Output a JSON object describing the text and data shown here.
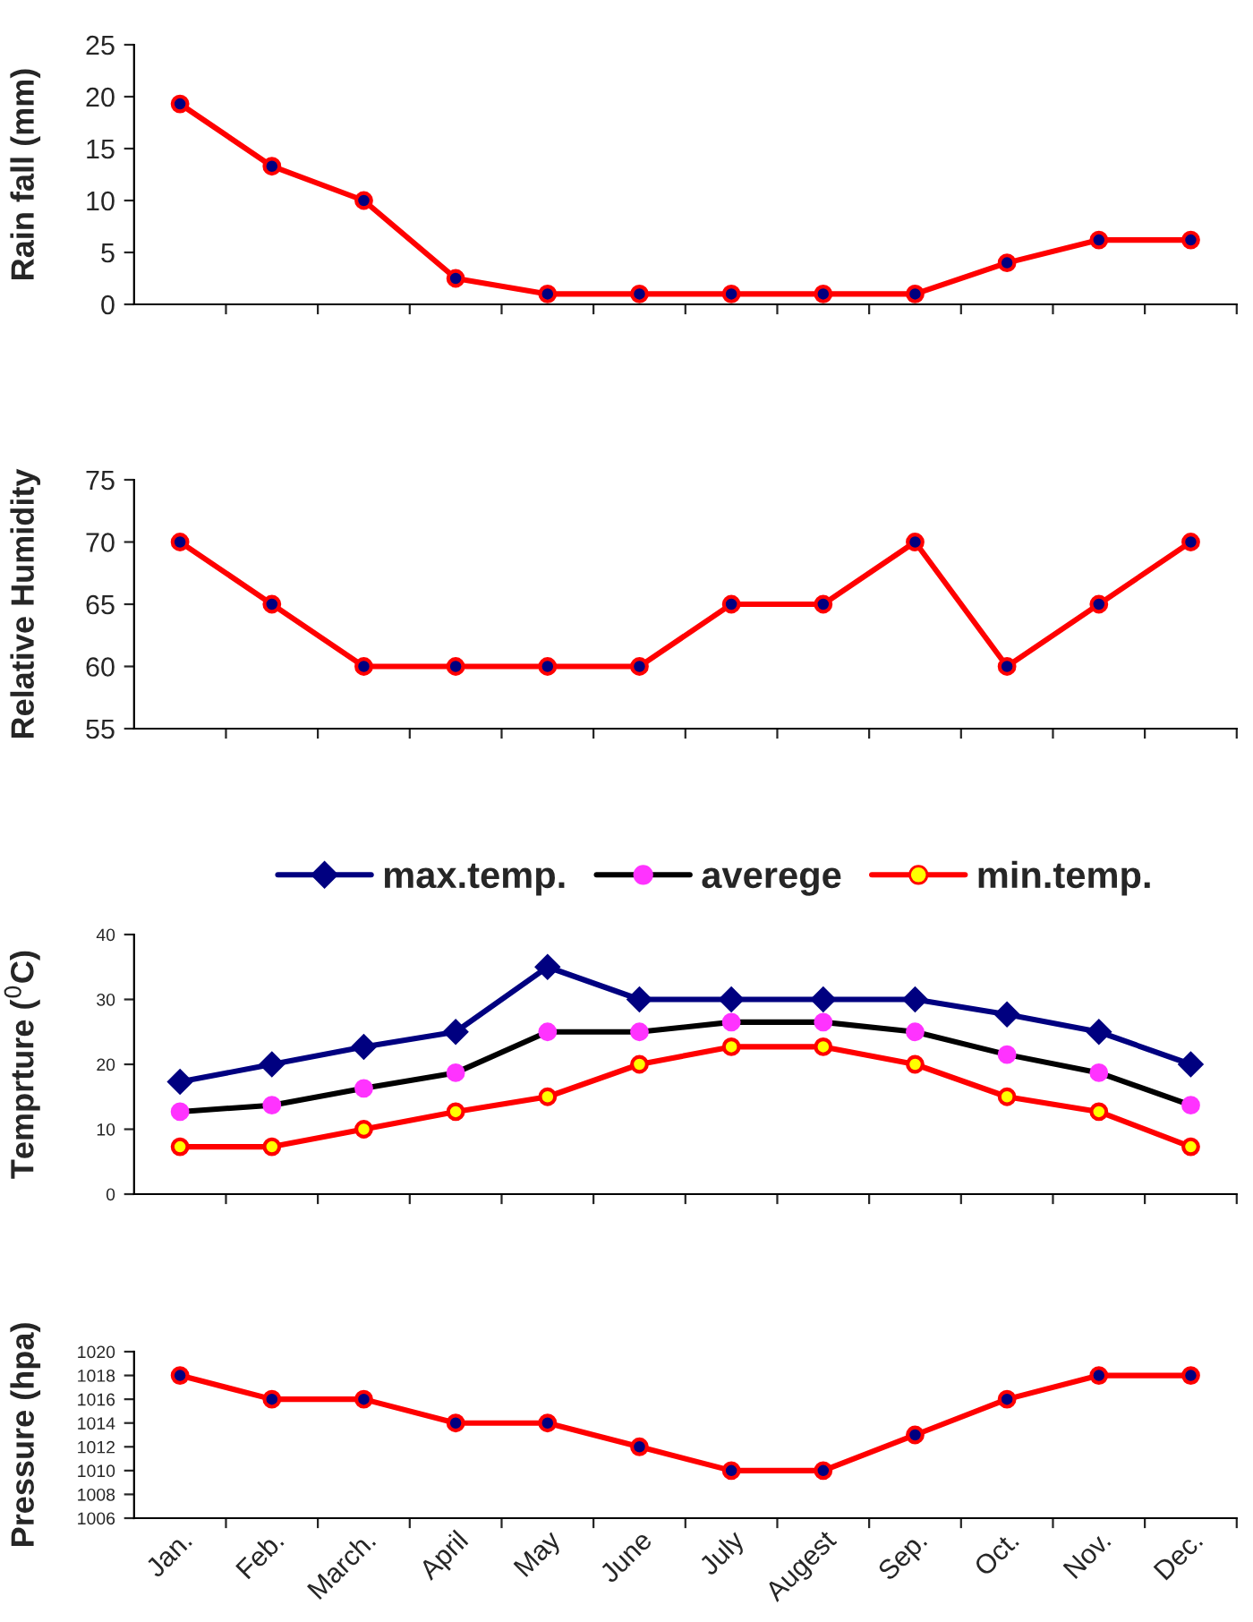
{
  "chart_data": [
    {
      "type": "line",
      "ylabel": "Rain fall (mm)",
      "categories": [
        null,
        null,
        null,
        null,
        null,
        null,
        null,
        null,
        null,
        null,
        null,
        null
      ],
      "series": [
        {
          "color": "#ff0000",
          "values": [
            19.3,
            13.3,
            10,
            2.5,
            1,
            1,
            1,
            1,
            1,
            4,
            6.2,
            6.2
          ]
        }
      ],
      "ylim": [
        0,
        25
      ],
      "yticks": [
        0,
        5,
        10,
        15,
        20,
        25
      ],
      "marker": "circle",
      "tick_labels": "y",
      "grid": false,
      "legend": false
    },
    {
      "type": "line",
      "ylabel": "Relative Humidity",
      "categories": [
        null,
        null,
        null,
        null,
        null,
        null,
        null,
        null,
        null,
        null,
        null,
        null
      ],
      "series": [
        {
          "color": "#ff0000",
          "values": [
            70,
            65,
            60,
            60,
            60,
            60,
            65,
            65,
            70,
            60,
            65,
            70
          ]
        }
      ],
      "ylim": [
        55,
        75
      ],
      "yticks": [
        55,
        60,
        65,
        70,
        75
      ],
      "marker": "circle",
      "tick_labels": "y",
      "grid": false,
      "legend": false
    },
    {
      "type": "line",
      "ylabel": "Temprture ($^{0}$C)",
      "categories": [
        null,
        null,
        null,
        null,
        null,
        null,
        null,
        null,
        null,
        null,
        null,
        null
      ],
      "series": [
        {
          "name": "max.temp.",
          "color": "#000080",
          "marker": "diamond",
          "values": [
            17.3,
            20,
            22.7,
            25,
            35,
            30,
            30,
            30,
            30,
            27.7,
            25,
            20
          ]
        },
        {
          "name": "averege",
          "color": "#000000",
          "marker": "circle",
          "values": [
            12.7,
            13.7,
            16.3,
            18.7,
            25,
            25,
            26.5,
            26.5,
            25,
            21.5,
            18.7,
            13.7
          ]
        },
        {
          "name": "min.temp.",
          "color": "#ff0000",
          "marker": "circle",
          "values": [
            7.3,
            7.3,
            10,
            12.7,
            15,
            20,
            22.7,
            22.7,
            20,
            15,
            12.7,
            7.3
          ]
        }
      ],
      "ylim": [
        0,
        40
      ],
      "yticks": [
        0,
        10,
        20,
        30,
        40
      ],
      "tick_labels": "y",
      "grid": false,
      "legend": "top"
    },
    {
      "type": "line",
      "ylabel": "Pressure (hpa)",
      "categories": [
        "Jan.",
        "Feb.",
        "March.",
        "April",
        "May",
        "June",
        "July",
        "Augest",
        "Sep.",
        "Oct.",
        "Nov.",
        "Dec."
      ],
      "series": [
        {
          "color": "#ff0000",
          "values": [
            1018,
            1016,
            1016,
            1014,
            1014,
            1012,
            1010,
            1010,
            1013,
            1016,
            1018,
            1018
          ]
        }
      ],
      "ylim": [
        1006,
        1020
      ],
      "yticks": [
        1006,
        1008,
        1010,
        1012,
        1014,
        1016,
        1018,
        1020
      ],
      "marker": "circle",
      "grid": false,
      "legend": false
    }
  ]
}
